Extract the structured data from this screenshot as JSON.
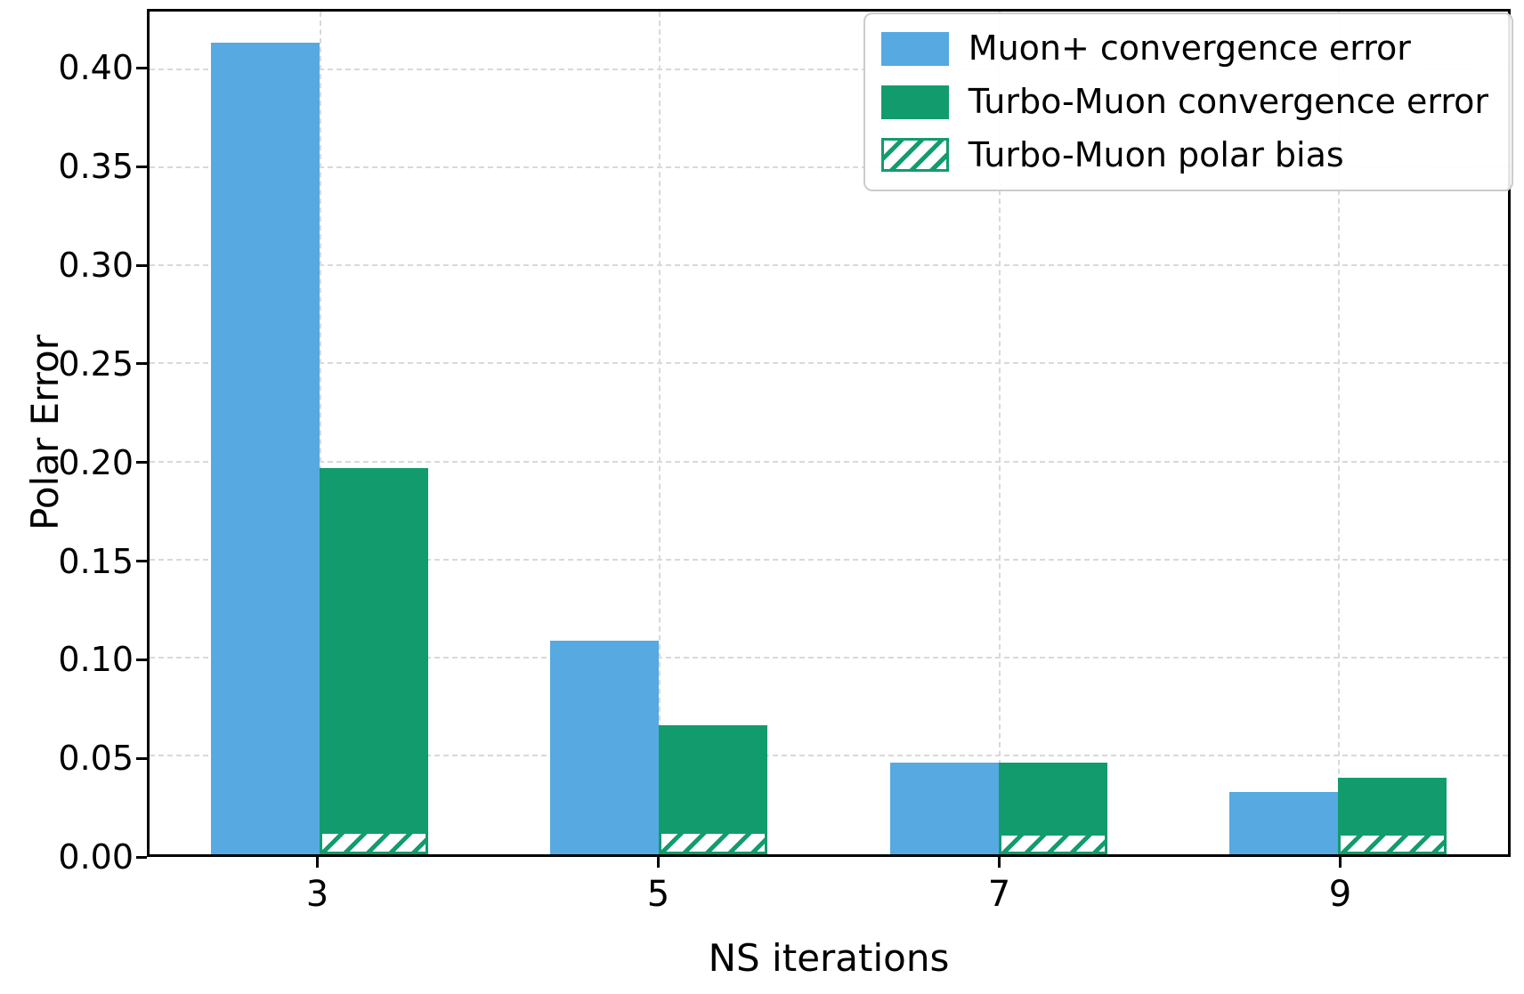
{
  "chart_data": {
    "type": "bar",
    "title": "",
    "xlabel": "NS iterations",
    "ylabel": "Polar Error",
    "categories": [
      "3",
      "5",
      "7",
      "9"
    ],
    "series": [
      {
        "name": "Muon+ convergence error",
        "color": "#56a9e1",
        "hatch": false,
        "values": [
          0.414,
          0.109,
          0.047,
          0.032
        ]
      },
      {
        "name": "Turbo-Muon convergence error",
        "color": "#129c6d",
        "hatch": false,
        "values": [
          0.197,
          0.066,
          0.047,
          0.039
        ]
      },
      {
        "name": "Turbo-Muon polar bias",
        "color": "#129c6d",
        "hatch": true,
        "values": [
          0.012,
          0.012,
          0.011,
          0.011
        ]
      }
    ],
    "ylim": [
      0,
      0.43
    ],
    "yticks": [
      0.0,
      0.05,
      0.1,
      0.15,
      0.2,
      0.25,
      0.3,
      0.35,
      0.4
    ],
    "grid": true,
    "grid_style": "dashed",
    "legend_position": "upper right",
    "colors": {
      "grid": "#d9d9d9",
      "spine": "#000000",
      "background": "#ffffff"
    }
  }
}
